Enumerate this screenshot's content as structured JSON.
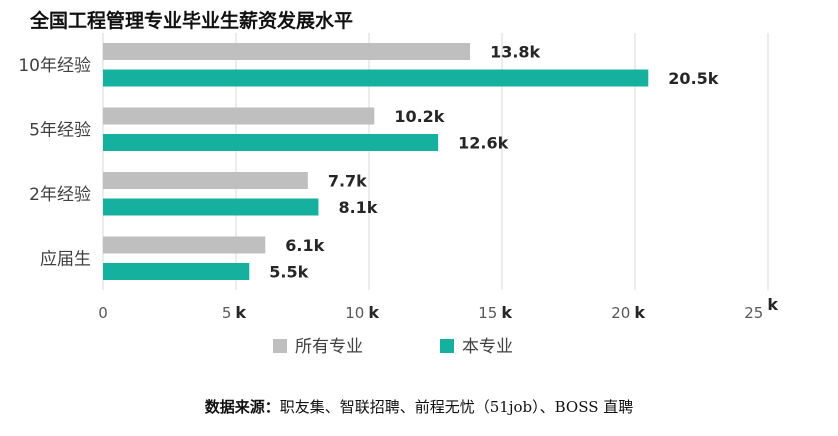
{
  "chart_data": {
    "type": "bar",
    "orientation": "horizontal",
    "title": "全国工程管理专业毕业生薪资发展水平",
    "categories": [
      "10年经验",
      "5年经验",
      "2年经验",
      "应届生"
    ],
    "series": [
      {
        "name": "所有专业",
        "values": [
          13.8,
          10.2,
          7.7,
          6.1
        ],
        "labels": [
          "13.8k",
          "10.2k",
          "7.7k",
          "6.1k"
        ],
        "color": "#bfbfbf"
      },
      {
        "name": "本专业",
        "values": [
          20.5,
          12.6,
          8.1,
          5.5
        ],
        "labels": [
          "20.5k",
          "12.6k",
          "8.1k",
          "5.5k"
        ],
        "color": "#16b09e"
      }
    ],
    "xlim": [
      0,
      25
    ],
    "xticks": [
      {
        "value": 0,
        "num": "0",
        "unit": ""
      },
      {
        "value": 5,
        "num": "5",
        "unit": "k"
      },
      {
        "value": 10,
        "num": "10",
        "unit": "k"
      },
      {
        "value": 15,
        "num": "15",
        "unit": "k"
      },
      {
        "value": 20,
        "num": "20",
        "unit": "k"
      },
      {
        "value": 25,
        "num": "25",
        "unit": "k"
      }
    ],
    "grid": "vertical",
    "legend_position": "bottom"
  },
  "source": {
    "label": "数据来源：",
    "text": "职友集、智联招聘、前程无忧（51job）、BOSS 直聘"
  }
}
